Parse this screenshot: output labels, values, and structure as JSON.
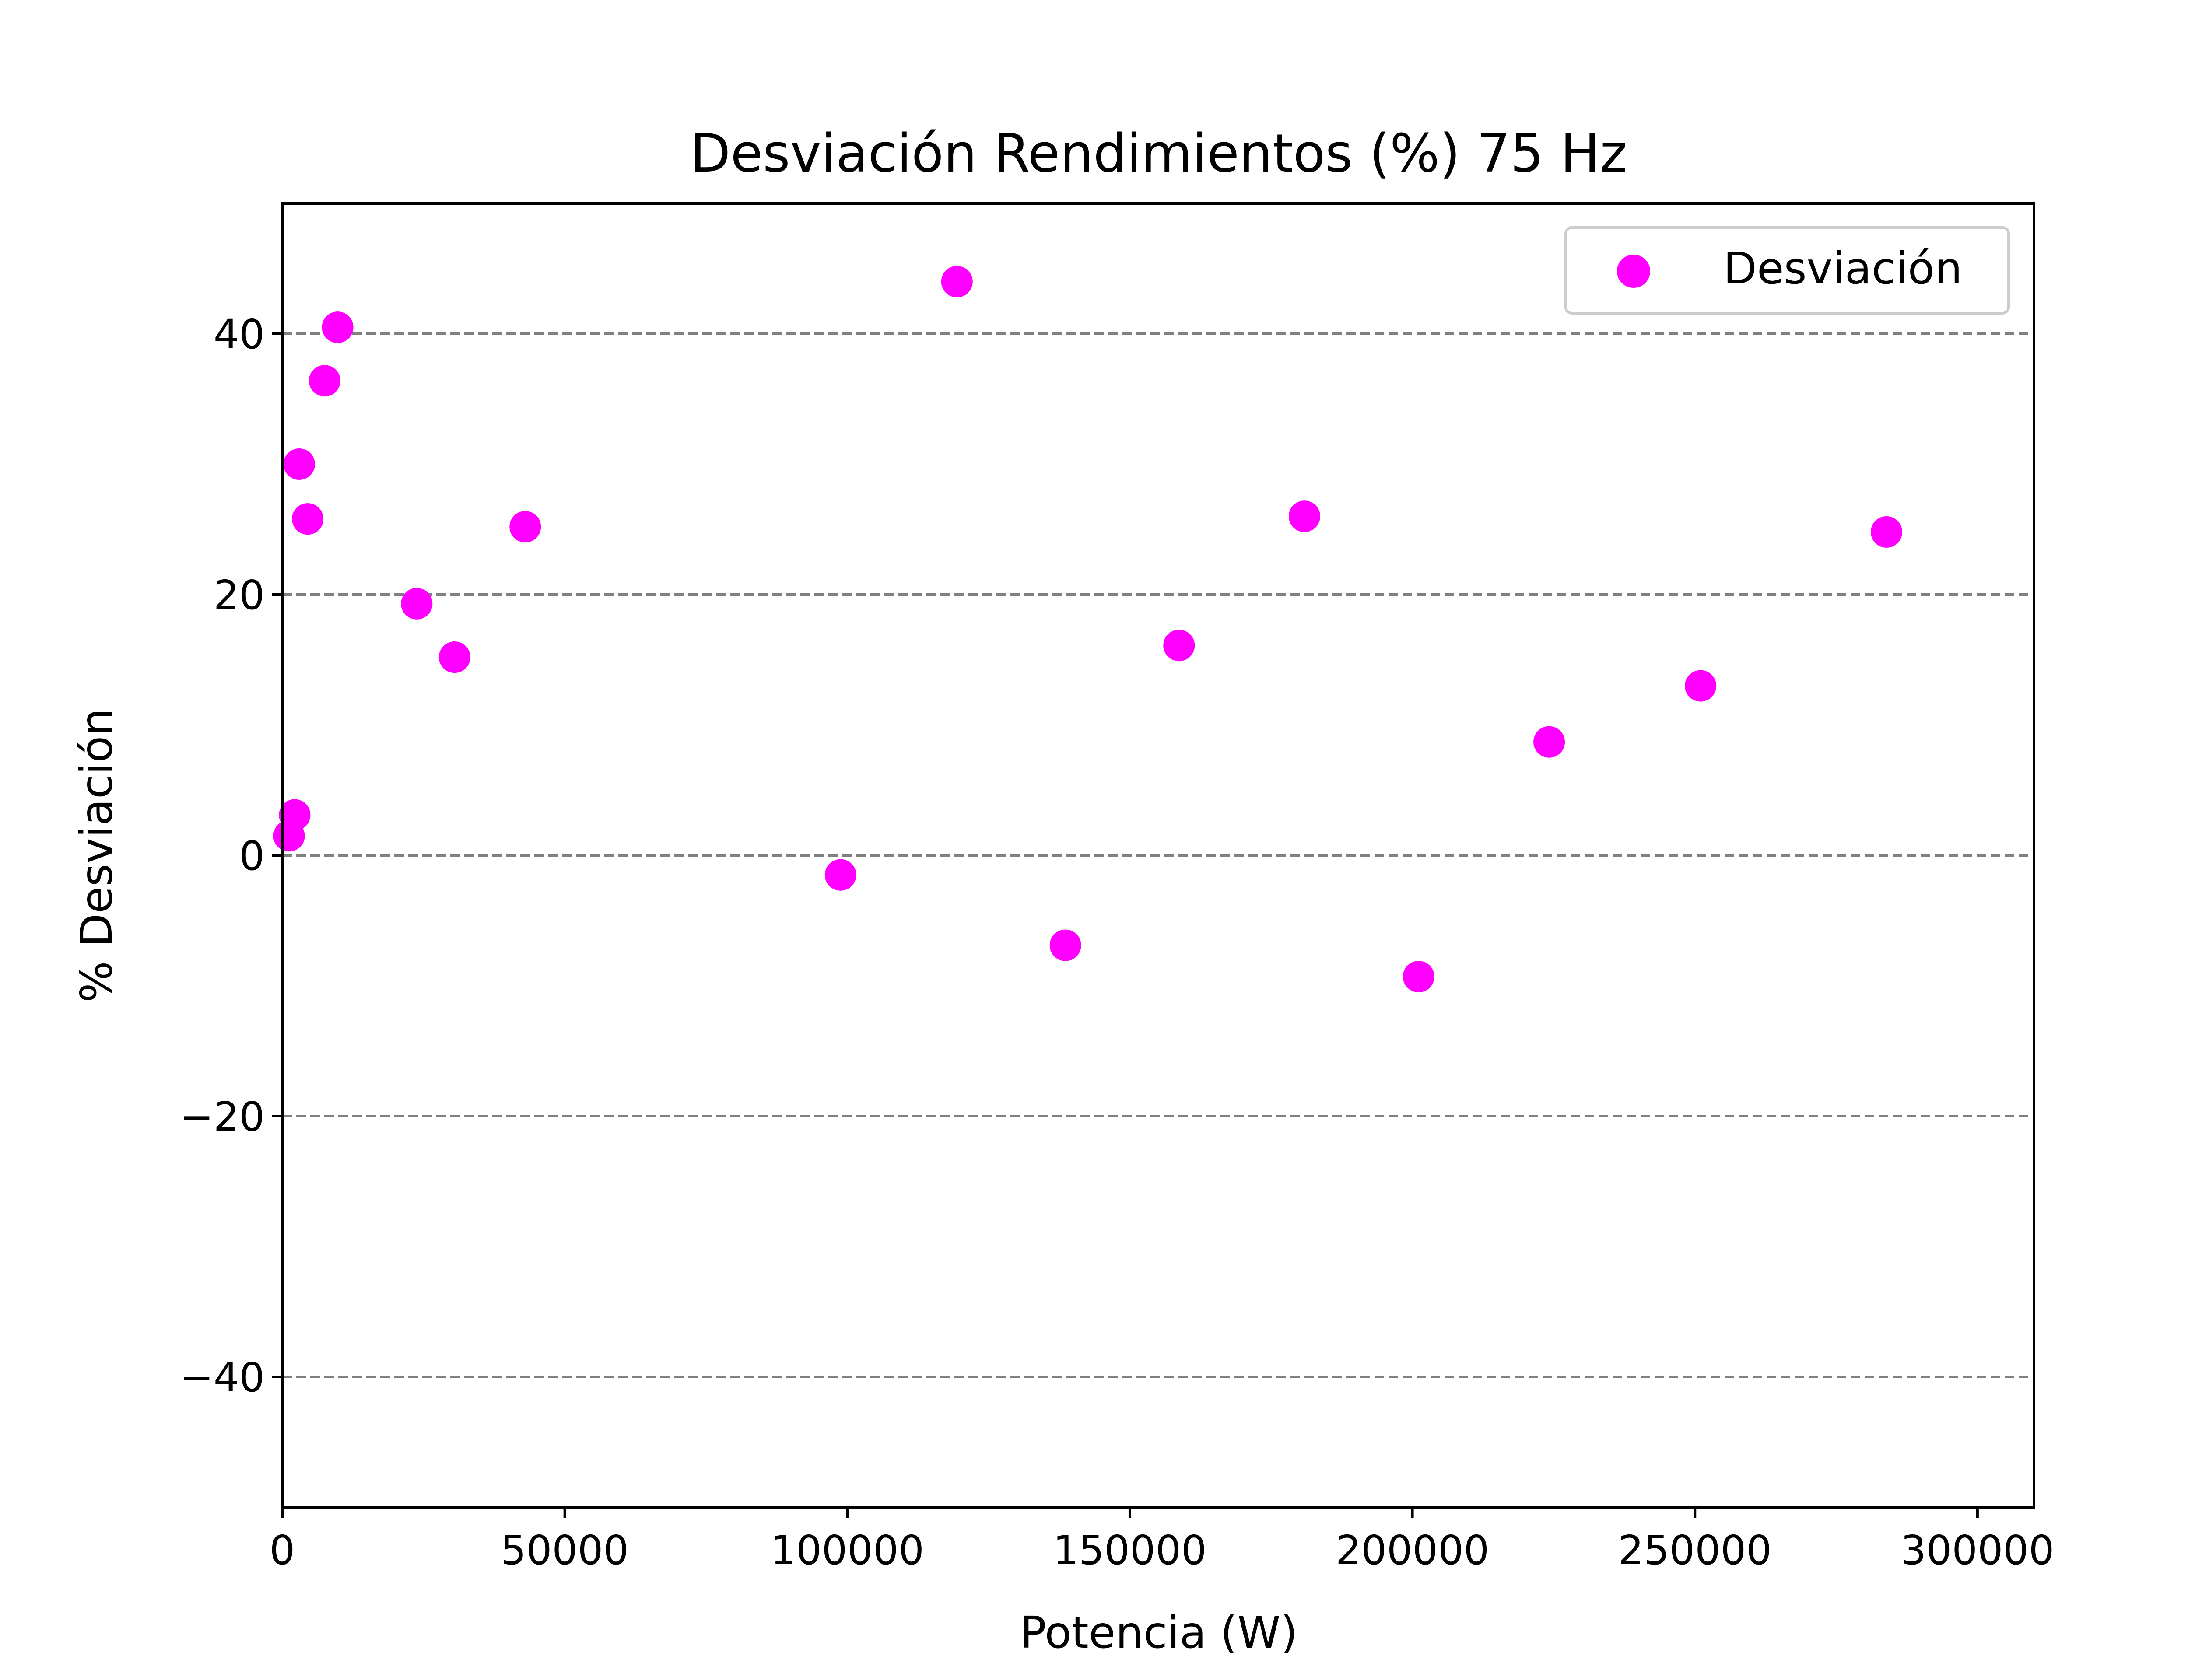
{
  "chart_data": {
    "type": "scatter",
    "title": "Desviación Rendimientos (%) 75 Hz",
    "xlabel": "Potencia (W)",
    "ylabel": "% Desviación",
    "xlim": [
      0,
      310000
    ],
    "ylim": [
      -50,
      50
    ],
    "x_ticks": [
      {
        "value": 0,
        "label": "0"
      },
      {
        "value": 50000,
        "label": "50000"
      },
      {
        "value": 100000,
        "label": "100000"
      },
      {
        "value": 150000,
        "label": "150000"
      },
      {
        "value": 200000,
        "label": "200000"
      },
      {
        "value": 250000,
        "label": "250000"
      },
      {
        "value": 300000,
        "label": "300000"
      }
    ],
    "y_ticks": [
      {
        "value": -40,
        "label": "−40"
      },
      {
        "value": -20,
        "label": "−20"
      },
      {
        "value": 0,
        "label": "0"
      },
      {
        "value": 20,
        "label": "20"
      },
      {
        "value": 40,
        "label": "40"
      }
    ],
    "grid": {
      "axis": "y",
      "style": "dashed",
      "color": "#808080"
    },
    "legend": {
      "position": "top-right"
    },
    "series": [
      {
        "name": "Desviación",
        "color": "#ff00ff",
        "points": [
          {
            "x": 1200,
            "y": 1.5
          },
          {
            "x": 2200,
            "y": 3.1
          },
          {
            "x": 3000,
            "y": 30.0
          },
          {
            "x": 4500,
            "y": 25.8
          },
          {
            "x": 7500,
            "y": 36.4
          },
          {
            "x": 9800,
            "y": 40.5
          },
          {
            "x": 23800,
            "y": 19.3
          },
          {
            "x": 30500,
            "y": 15.2
          },
          {
            "x": 43000,
            "y": 25.2
          },
          {
            "x": 98800,
            "y": -1.5
          },
          {
            "x": 119400,
            "y": 44.0
          },
          {
            "x": 138600,
            "y": -6.9
          },
          {
            "x": 158700,
            "y": 16.1
          },
          {
            "x": 180900,
            "y": 26.0
          },
          {
            "x": 201100,
            "y": -9.3
          },
          {
            "x": 224200,
            "y": 8.7
          },
          {
            "x": 251000,
            "y": 13.0
          },
          {
            "x": 283900,
            "y": 24.8
          }
        ]
      }
    ]
  }
}
